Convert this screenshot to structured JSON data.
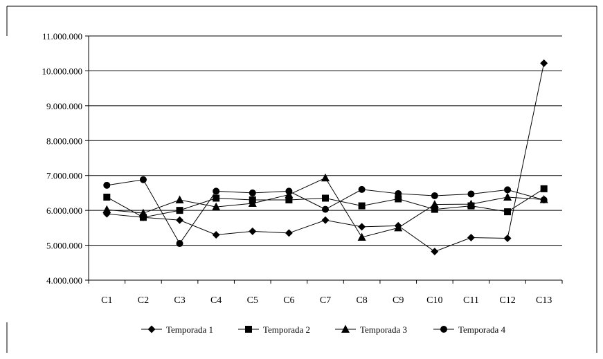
{
  "chart_data": {
    "type": "line",
    "title": "",
    "xlabel": "",
    "ylabel": "",
    "categories": [
      "C1",
      "C2",
      "C3",
      "C4",
      "C5",
      "C6",
      "C7",
      "C8",
      "C9",
      "C10",
      "C11",
      "C12",
      "C13"
    ],
    "ylim": [
      4000000,
      11000000
    ],
    "y_ticks": [
      "4.000.000",
      "5.000.000",
      "6.000.000",
      "7.000.000",
      "8.000.000",
      "9.000.000",
      "10.000.000",
      "11.000.000"
    ],
    "grid": "horizontal",
    "legend_position": "bottom",
    "series": [
      {
        "name": "Temporada 1",
        "marker": "diamond",
        "values": [
          5900000,
          5800000,
          5720000,
          5300000,
          5400000,
          5350000,
          5720000,
          5530000,
          5560000,
          4820000,
          5220000,
          5200000,
          10220000
        ]
      },
      {
        "name": "Temporada 2",
        "marker": "square",
        "values": [
          6380000,
          5800000,
          6000000,
          6350000,
          6300000,
          6300000,
          6350000,
          6130000,
          6330000,
          6030000,
          6130000,
          5960000,
          6620000
        ]
      },
      {
        "name": "Temporada 3",
        "marker": "triangle",
        "values": [
          6020000,
          5920000,
          6300000,
          6100000,
          6200000,
          6450000,
          6930000,
          5230000,
          5500000,
          6170000,
          6180000,
          6380000,
          6310000
        ]
      },
      {
        "name": "Temporada 4",
        "marker": "circle",
        "values": [
          6720000,
          6880000,
          5050000,
          6550000,
          6500000,
          6550000,
          6030000,
          6600000,
          6480000,
          6420000,
          6470000,
          6590000,
          6300000
        ]
      }
    ]
  }
}
